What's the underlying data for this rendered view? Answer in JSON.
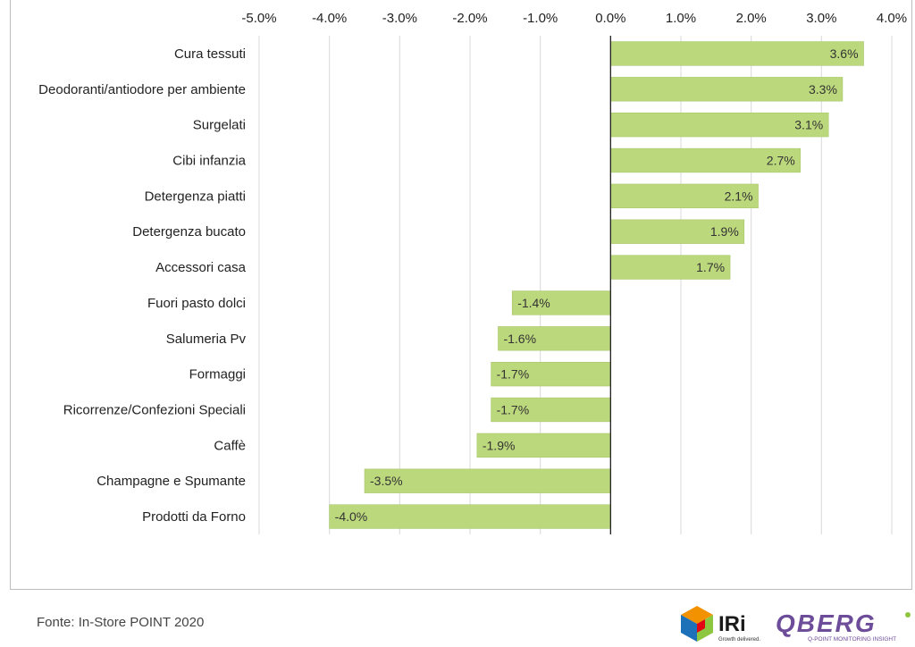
{
  "chart_data": {
    "type": "bar",
    "orientation": "horizontal",
    "categories": [
      "Cura tessuti",
      "Deodoranti/antiodore per ambiente",
      "Surgelati",
      "Cibi infanzia",
      "Detergenza piatti",
      "Detergenza bucato",
      "Accessori casa",
      "Fuori pasto dolci",
      "Salumeria Pv",
      "Formaggi",
      "Ricorrenze/Confezioni Speciali",
      "Caffè",
      "Champagne e Spumante",
      "Prodotti da Forno"
    ],
    "values": [
      3.6,
      3.3,
      3.1,
      2.7,
      2.1,
      1.9,
      1.7,
      -1.4,
      -1.6,
      -1.7,
      -1.7,
      -1.9,
      -3.5,
      -4.0
    ],
    "value_labels": [
      "3.6%",
      "3.3%",
      "3.1%",
      "2.7%",
      "2.1%",
      "1.9%",
      "1.7%",
      "-1.4%",
      "-1.6%",
      "-1.7%",
      "-1.7%",
      "-1.9%",
      "-3.5%",
      "-4.0%"
    ],
    "xlim": [
      -5.0,
      4.0
    ],
    "x_ticks": [
      -5.0,
      -4.0,
      -3.0,
      -2.0,
      -1.0,
      0.0,
      1.0,
      2.0,
      3.0,
      4.0
    ],
    "x_tick_labels": [
      "-5.0%",
      "-4.0%",
      "-3.0%",
      "-2.0%",
      "-1.0%",
      "0.0%",
      "1.0%",
      "2.0%",
      "3.0%",
      "4.0%"
    ],
    "x_axis_position": "top",
    "grid": true,
    "title": "",
    "xlabel": "",
    "ylabel": "",
    "bar_color": "#bcd87c",
    "bar_border_color": "#a9c86a"
  },
  "footer": {
    "source": "Fonte: In-Store POINT 2020",
    "logo_iri_text": "IRi",
    "logo_iri_tagline": "Growth delivered.",
    "logo_qberg_text": "QBERG",
    "logo_qberg_tagline": "Q-POINT MONITORING INSIGHT"
  },
  "colors": {
    "iri_orange": "#f39200",
    "iri_blue": "#1d71b8",
    "iri_green": "#8dc63f",
    "iri_red": "#e30613",
    "qberg_purple": "#6d4c9a",
    "qberg_green": "#8cc63f"
  }
}
